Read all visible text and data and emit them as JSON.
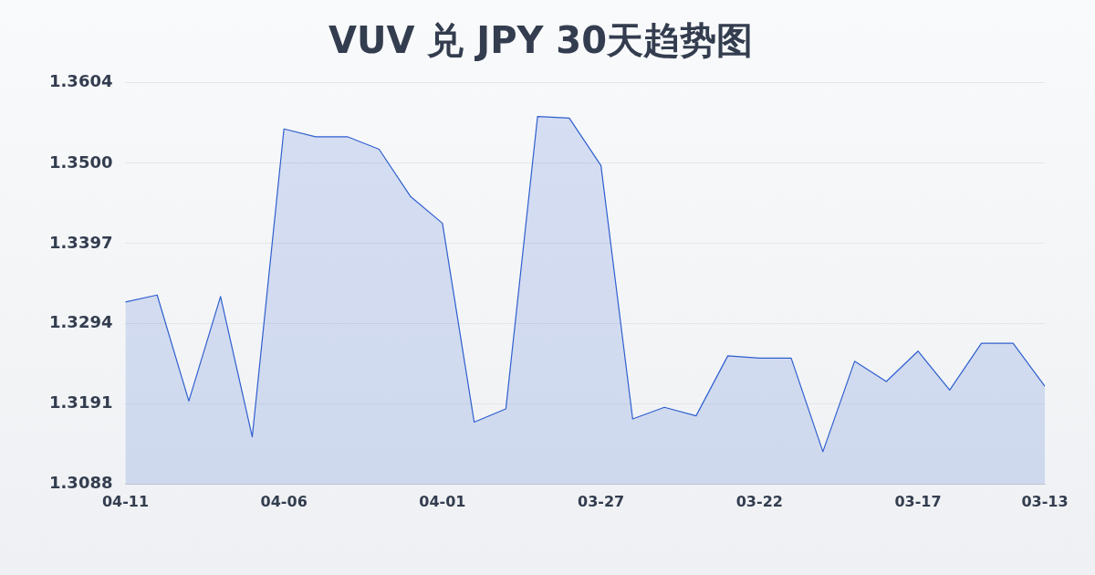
{
  "chart_data": {
    "type": "area",
    "title": "VUV 兑 JPY 30天趋势图",
    "categories": [
      "04-11",
      null,
      null,
      null,
      null,
      "04-06",
      null,
      null,
      null,
      null,
      "04-01",
      null,
      null,
      null,
      null,
      "03-27",
      null,
      null,
      null,
      null,
      "03-22",
      null,
      null,
      null,
      null,
      "03-17",
      null,
      null,
      null,
      "03-13"
    ],
    "series": [
      {
        "color": "#2f5fcf",
        "values": [
          1.3322,
          1.3331,
          1.3195,
          1.3329,
          1.3149,
          1.3544,
          1.3534,
          1.3534,
          1.3518,
          1.3457,
          1.3423,
          1.3168,
          1.3185,
          1.356,
          1.3558,
          1.3497,
          1.3172,
          1.3187,
          1.3176,
          1.3253,
          1.325,
          1.325,
          1.313,
          1.3246,
          1.322,
          1.3259,
          1.3209,
          1.3269,
          1.3269,
          1.3214
        ]
      }
    ],
    "ylim": [
      1.3088,
      1.3604
    ],
    "yticks": [
      1.3088,
      1.3191,
      1.3294,
      1.3397,
      {
        "value": 1.35,
        "label": "1.3500"
      },
      1.3604
    ],
    "grid": "y",
    "legend": false,
    "marker": "none",
    "line_style": "solid"
  }
}
